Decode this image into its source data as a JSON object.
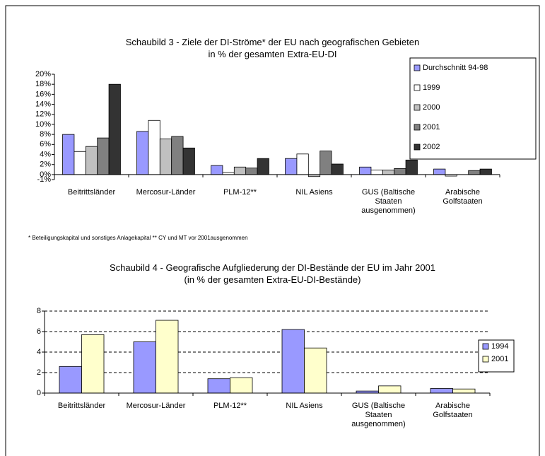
{
  "chart_data": [
    {
      "type": "bar",
      "title": "Schaubild 3 - Ziele der DI-Ströme* der EU nach geografischen Gebieten",
      "subtitle": "in % der gesamten Extra-EU-DI",
      "footnote": "* Beteiligungskapital und sonstiges Anlagekapital ** CY und MT vor 2001ausgenommen",
      "categories": [
        "Beitrittsländer",
        "Mercosur-Länder",
        "PLM-12**",
        "NIL Asiens",
        "GUS (Baltische Staaten ausgenommen)",
        "Arabische Golfstaaten"
      ],
      "series": [
        {
          "name": "Durchschnitt 94-98",
          "color": "#9999ff",
          "values": [
            8.0,
            8.6,
            1.8,
            3.2,
            1.5,
            1.1
          ]
        },
        {
          "name": "1999",
          "color": "#ffffff",
          "values": [
            4.6,
            10.8,
            0.4,
            4.1,
            0.9,
            -0.3
          ]
        },
        {
          "name": "2000",
          "color": "#c0c0c0",
          "values": [
            5.6,
            7.1,
            1.5,
            -0.4,
            0.9,
            null
          ]
        },
        {
          "name": "2001",
          "color": "#808080",
          "values": [
            7.3,
            7.6,
            1.3,
            4.7,
            1.2,
            0.8
          ]
        },
        {
          "name": "2002",
          "color": "#333333",
          "values": [
            18,
            5.3,
            3.2,
            2.1,
            2.9,
            1.1
          ]
        }
      ],
      "ylim": [
        -1,
        20
      ],
      "yticks": [
        {
          "value": -1,
          "label": "-1%"
        },
        {
          "value": 0,
          "label": "0%"
        },
        {
          "value": 2,
          "label": "2%"
        },
        {
          "value": 4,
          "label": "4%"
        },
        {
          "value": 6,
          "label": "6%"
        },
        {
          "value": 8,
          "label": "8%"
        },
        {
          "value": 10,
          "label": "10%"
        },
        {
          "value": 12,
          "label": "12%"
        },
        {
          "value": 14,
          "label": "14%"
        },
        {
          "value": 16,
          "label": "16%"
        },
        {
          "value": 18,
          "label": "18%"
        },
        {
          "value": 20,
          "label": "20%"
        }
      ],
      "grid": false,
      "legend": "upper right"
    },
    {
      "type": "bar",
      "title": "Schaubild 4 - Geografische Aufgliederung der DI-Bestände der EU im Jahr 2001",
      "subtitle": "(in % der gesamten Extra-EU-DI-Bestände)",
      "categories": [
        "Beitrittsländer",
        "Mercosur-Länder",
        "PLM-12**",
        "NIL Asiens",
        "GUS (Baltische Staaten ausgenommen)",
        "Arabische Golfstaaten"
      ],
      "series": [
        {
          "name": "1994",
          "color": "#9999ff",
          "values": [
            2.6,
            5.0,
            1.4,
            6.2,
            0.2,
            0.45
          ]
        },
        {
          "name": "2001",
          "color": "#ffffcc",
          "values": [
            5.7,
            7.1,
            1.5,
            4.4,
            0.7,
            0.4
          ]
        }
      ],
      "ylim": [
        0,
        8
      ],
      "yticks": [
        0,
        2,
        4,
        6,
        8
      ],
      "grid": true,
      "legend": "right"
    }
  ]
}
